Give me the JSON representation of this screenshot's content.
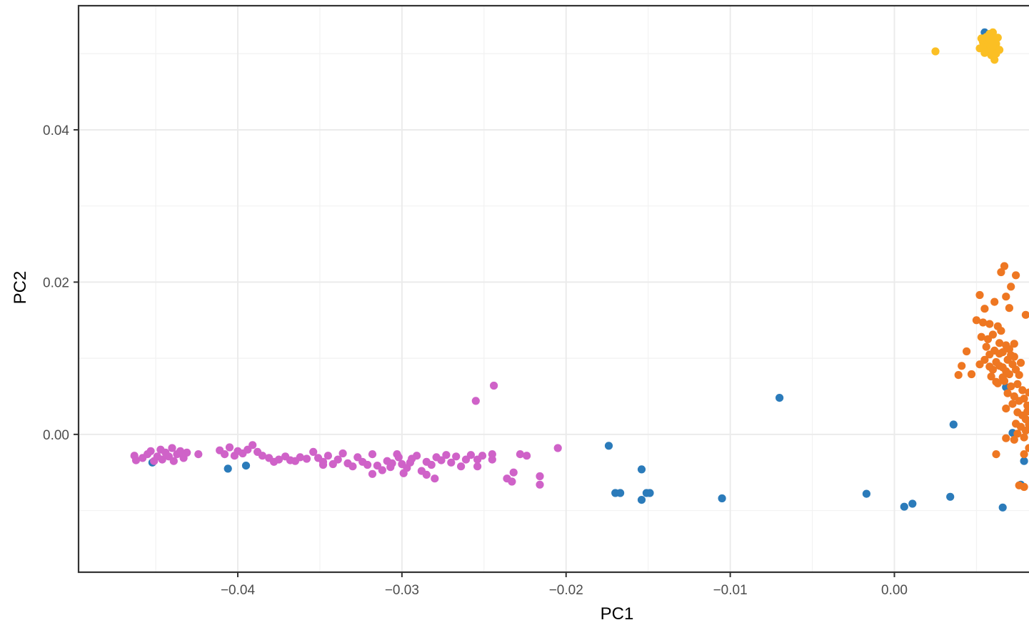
{
  "chart_data": {
    "type": "scatter",
    "xlabel": "PC1",
    "ylabel": "PC2",
    "xlim": [
      -0.0497,
      0.0082
    ],
    "ylim": [
      -0.0181,
      0.0563
    ],
    "x_ticks": [
      {
        "value": -0.04,
        "label": "−0.04"
      },
      {
        "value": -0.03,
        "label": "−0.03"
      },
      {
        "value": -0.02,
        "label": "−0.02"
      },
      {
        "value": -0.01,
        "label": "−0.01"
      },
      {
        "value": 0.0,
        "label": "0.00"
      }
    ],
    "y_ticks": [
      {
        "value": 0.0,
        "label": "0.00"
      },
      {
        "value": 0.02,
        "label": "0.02"
      },
      {
        "value": 0.04,
        "label": "0.04"
      }
    ],
    "grid": true,
    "legend": "none",
    "series": [
      {
        "color": "#2b7bba",
        "points": [
          [
            -0.0452,
            -0.0037
          ],
          [
            -0.0406,
            -0.0045
          ],
          [
            -0.0395,
            -0.0041
          ],
          [
            -0.0174,
            -0.0015
          ],
          [
            -0.017,
            -0.0077
          ],
          [
            -0.0167,
            -0.0077
          ],
          [
            -0.0154,
            -0.0046
          ],
          [
            -0.0154,
            -0.0086
          ],
          [
            -0.0151,
            -0.0077
          ],
          [
            -0.0149,
            -0.0077
          ],
          [
            -0.0105,
            -0.0084
          ],
          [
            -0.007,
            0.0048
          ],
          [
            -0.0017,
            -0.0078
          ],
          [
            0.0006,
            -0.0095
          ],
          [
            0.0011,
            -0.0091
          ],
          [
            0.0034,
            -0.0082
          ],
          [
            0.0036,
            0.0013
          ],
          [
            0.0066,
            -0.0096
          ],
          [
            0.0055,
            0.0528
          ],
          [
            0.0068,
            0.0062
          ],
          [
            0.0077,
            -0.0066
          ],
          [
            0.0079,
            -0.0035
          ],
          [
            0.0072,
            0.0002
          ]
        ]
      },
      {
        "color": "#fbbf24",
        "points": [
          [
            0.0025,
            0.0503
          ],
          [
            0.0052,
            0.0507
          ],
          [
            0.0054,
            0.0515
          ],
          [
            0.0055,
            0.051
          ],
          [
            0.0056,
            0.0522
          ],
          [
            0.0057,
            0.0503
          ],
          [
            0.0058,
            0.0526
          ],
          [
            0.0058,
            0.0512
          ],
          [
            0.0059,
            0.0498
          ],
          [
            0.006,
            0.0518
          ],
          [
            0.0061,
            0.0507
          ],
          [
            0.0062,
            0.0513
          ],
          [
            0.0063,
            0.0521
          ],
          [
            0.0064,
            0.0505
          ],
          [
            0.0056,
            0.0515
          ],
          [
            0.0059,
            0.0509
          ],
          [
            0.0061,
            0.0492
          ],
          [
            0.006,
            0.0528
          ],
          [
            0.0053,
            0.052
          ],
          [
            0.0057,
            0.0516
          ],
          [
            0.0062,
            0.05
          ],
          [
            0.0055,
            0.0501
          ],
          [
            0.0058,
            0.0519
          ],
          [
            0.006,
            0.0511
          ]
        ]
      },
      {
        "color": "#ee7722",
        "points": [
          [
            0.0067,
            0.0221
          ],
          [
            0.0065,
            0.0213
          ],
          [
            0.0074,
            0.0209
          ],
          [
            0.0071,
            0.0194
          ],
          [
            0.0052,
            0.0183
          ],
          [
            0.0061,
            0.0174
          ],
          [
            0.0055,
            0.0165
          ],
          [
            0.007,
            0.0166
          ],
          [
            0.0068,
            0.0181
          ],
          [
            0.008,
            0.0157
          ],
          [
            0.005,
            0.015
          ],
          [
            0.0054,
            0.0147
          ],
          [
            0.0058,
            0.0145
          ],
          [
            0.0063,
            0.0142
          ],
          [
            0.0065,
            0.0136
          ],
          [
            0.006,
            0.0131
          ],
          [
            0.0053,
            0.0128
          ],
          [
            0.0057,
            0.0125
          ],
          [
            0.0064,
            0.012
          ],
          [
            0.0068,
            0.0117
          ],
          [
            0.0073,
            0.0119
          ],
          [
            0.0056,
            0.0115
          ],
          [
            0.0061,
            0.011
          ],
          [
            0.0066,
            0.0108
          ],
          [
            0.0071,
            0.0104
          ],
          [
            0.0044,
            0.0109
          ],
          [
            0.0041,
            0.009
          ],
          [
            0.0039,
            0.0078
          ],
          [
            0.0047,
            0.0079
          ],
          [
            0.0052,
            0.0092
          ],
          [
            0.0055,
            0.0098
          ],
          [
            0.0058,
            0.0089
          ],
          [
            0.006,
            0.0085
          ],
          [
            0.0062,
            0.0095
          ],
          [
            0.0064,
            0.009
          ],
          [
            0.0066,
            0.0088
          ],
          [
            0.0068,
            0.0083
          ],
          [
            0.007,
            0.0079
          ],
          [
            0.0072,
            0.0092
          ],
          [
            0.0074,
            0.0085
          ],
          [
            0.0076,
            0.0078
          ],
          [
            0.0069,
            0.0098
          ],
          [
            0.0073,
            0.0102
          ],
          [
            0.0077,
            0.0094
          ],
          [
            0.0059,
            0.0076
          ],
          [
            0.0063,
            0.0067
          ],
          [
            0.0067,
            0.007
          ],
          [
            0.0071,
            0.0063
          ],
          [
            0.0075,
            0.0066
          ],
          [
            0.0078,
            0.0058
          ],
          [
            0.0069,
            0.0054
          ],
          [
            0.0073,
            0.005
          ],
          [
            0.0076,
            0.0044
          ],
          [
            0.0079,
            0.0047
          ],
          [
            0.0081,
            0.0038
          ],
          [
            0.0072,
            0.004
          ],
          [
            0.0068,
            0.0034
          ],
          [
            0.0075,
            0.0029
          ],
          [
            0.0078,
            0.0025
          ],
          [
            0.008,
            0.002
          ],
          [
            0.0074,
            0.0014
          ],
          [
            0.0077,
            0.001
          ],
          [
            0.008,
            0.0005
          ],
          [
            0.0075,
            0.0001
          ],
          [
            0.0079,
            -0.0004
          ],
          [
            0.0073,
            -0.0007
          ],
          [
            0.0068,
            -0.0005
          ],
          [
            0.0082,
            0.0013
          ],
          [
            0.0082,
            -0.0018
          ],
          [
            0.0079,
            -0.0026
          ],
          [
            0.0062,
            -0.0026
          ],
          [
            0.0076,
            -0.0067
          ],
          [
            0.0079,
            -0.0069
          ],
          [
            0.0082,
            0.0055
          ],
          [
            0.0081,
            0.003
          ],
          [
            0.0064,
            0.0106
          ],
          [
            0.0058,
            0.0105
          ],
          [
            0.0062,
            0.0069
          ],
          [
            0.007,
            0.0112
          ],
          [
            0.0066,
            0.0075
          ]
        ]
      },
      {
        "color": "#cf62c8",
        "points": [
          [
            -0.0463,
            -0.0028
          ],
          [
            -0.0462,
            -0.0034
          ],
          [
            -0.0458,
            -0.0031
          ],
          [
            -0.0455,
            -0.0026
          ],
          [
            -0.0453,
            -0.0022
          ],
          [
            -0.0451,
            -0.0035
          ],
          [
            -0.0449,
            -0.0029
          ],
          [
            -0.0447,
            -0.002
          ],
          [
            -0.0446,
            -0.0033
          ],
          [
            -0.0444,
            -0.0024
          ],
          [
            -0.0442,
            -0.0029
          ],
          [
            -0.044,
            -0.0018
          ],
          [
            -0.0439,
            -0.0035
          ],
          [
            -0.0437,
            -0.0026
          ],
          [
            -0.0435,
            -0.0022
          ],
          [
            -0.0433,
            -0.0031
          ],
          [
            -0.0431,
            -0.0024
          ],
          [
            -0.0424,
            -0.0026
          ],
          [
            -0.0411,
            -0.0021
          ],
          [
            -0.0408,
            -0.0026
          ],
          [
            -0.0405,
            -0.0017
          ],
          [
            -0.0402,
            -0.0028
          ],
          [
            -0.04,
            -0.0022
          ],
          [
            -0.0397,
            -0.0025
          ],
          [
            -0.0394,
            -0.002
          ],
          [
            -0.0391,
            -0.0014
          ],
          [
            -0.0388,
            -0.0023
          ],
          [
            -0.0385,
            -0.0028
          ],
          [
            -0.0381,
            -0.0031
          ],
          [
            -0.0378,
            -0.0036
          ],
          [
            -0.0375,
            -0.0033
          ],
          [
            -0.0371,
            -0.0029
          ],
          [
            -0.0368,
            -0.0034
          ],
          [
            -0.0365,
            -0.0035
          ],
          [
            -0.0362,
            -0.003
          ],
          [
            -0.0358,
            -0.0032
          ],
          [
            -0.0354,
            -0.0023
          ],
          [
            -0.0351,
            -0.0031
          ],
          [
            -0.0348,
            -0.0036
          ],
          [
            -0.0345,
            -0.0028
          ],
          [
            -0.0342,
            -0.0039
          ],
          [
            -0.0339,
            -0.0033
          ],
          [
            -0.0336,
            -0.0025
          ],
          [
            -0.0333,
            -0.0038
          ],
          [
            -0.033,
            -0.0042
          ],
          [
            -0.0327,
            -0.003
          ],
          [
            -0.0324,
            -0.0036
          ],
          [
            -0.0321,
            -0.004
          ],
          [
            -0.0318,
            -0.0026
          ],
          [
            -0.0315,
            -0.0041
          ],
          [
            -0.0312,
            -0.0047
          ],
          [
            -0.0309,
            -0.0035
          ],
          [
            -0.0306,
            -0.0038
          ],
          [
            -0.0303,
            -0.0026
          ],
          [
            -0.03,
            -0.0039
          ],
          [
            -0.0297,
            -0.0044
          ],
          [
            -0.0294,
            -0.0032
          ],
          [
            -0.0291,
            -0.0028
          ],
          [
            -0.0288,
            -0.0048
          ],
          [
            -0.0285,
            -0.0036
          ],
          [
            -0.0282,
            -0.004
          ],
          [
            -0.0279,
            -0.003
          ],
          [
            -0.0276,
            -0.0034
          ],
          [
            -0.0273,
            -0.0027
          ],
          [
            -0.027,
            -0.0037
          ],
          [
            -0.0267,
            -0.0029
          ],
          [
            -0.0264,
            -0.0042
          ],
          [
            -0.0261,
            -0.0033
          ],
          [
            -0.0258,
            -0.0027
          ],
          [
            -0.0254,
            -0.0033
          ],
          [
            -0.0251,
            -0.0028
          ],
          [
            -0.0245,
            -0.0026
          ],
          [
            -0.0255,
            0.0044
          ],
          [
            -0.0244,
            0.0064
          ],
          [
            -0.0245,
            -0.0033
          ],
          [
            -0.0254,
            -0.0042
          ],
          [
            -0.0236,
            -0.0058
          ],
          [
            -0.0233,
            -0.0062
          ],
          [
            -0.0232,
            -0.005
          ],
          [
            -0.0228,
            -0.0026
          ],
          [
            -0.0224,
            -0.0028
          ],
          [
            -0.0216,
            -0.0055
          ],
          [
            -0.0216,
            -0.0066
          ],
          [
            -0.0205,
            -0.0018
          ],
          [
            -0.0285,
            -0.0053
          ],
          [
            -0.028,
            -0.0058
          ],
          [
            -0.0299,
            -0.0051
          ],
          [
            -0.0318,
            -0.0052
          ],
          [
            -0.0307,
            -0.0043
          ],
          [
            -0.0348,
            -0.004
          ],
          [
            -0.0295,
            -0.0037
          ],
          [
            -0.0302,
            -0.003
          ]
        ]
      }
    ]
  }
}
